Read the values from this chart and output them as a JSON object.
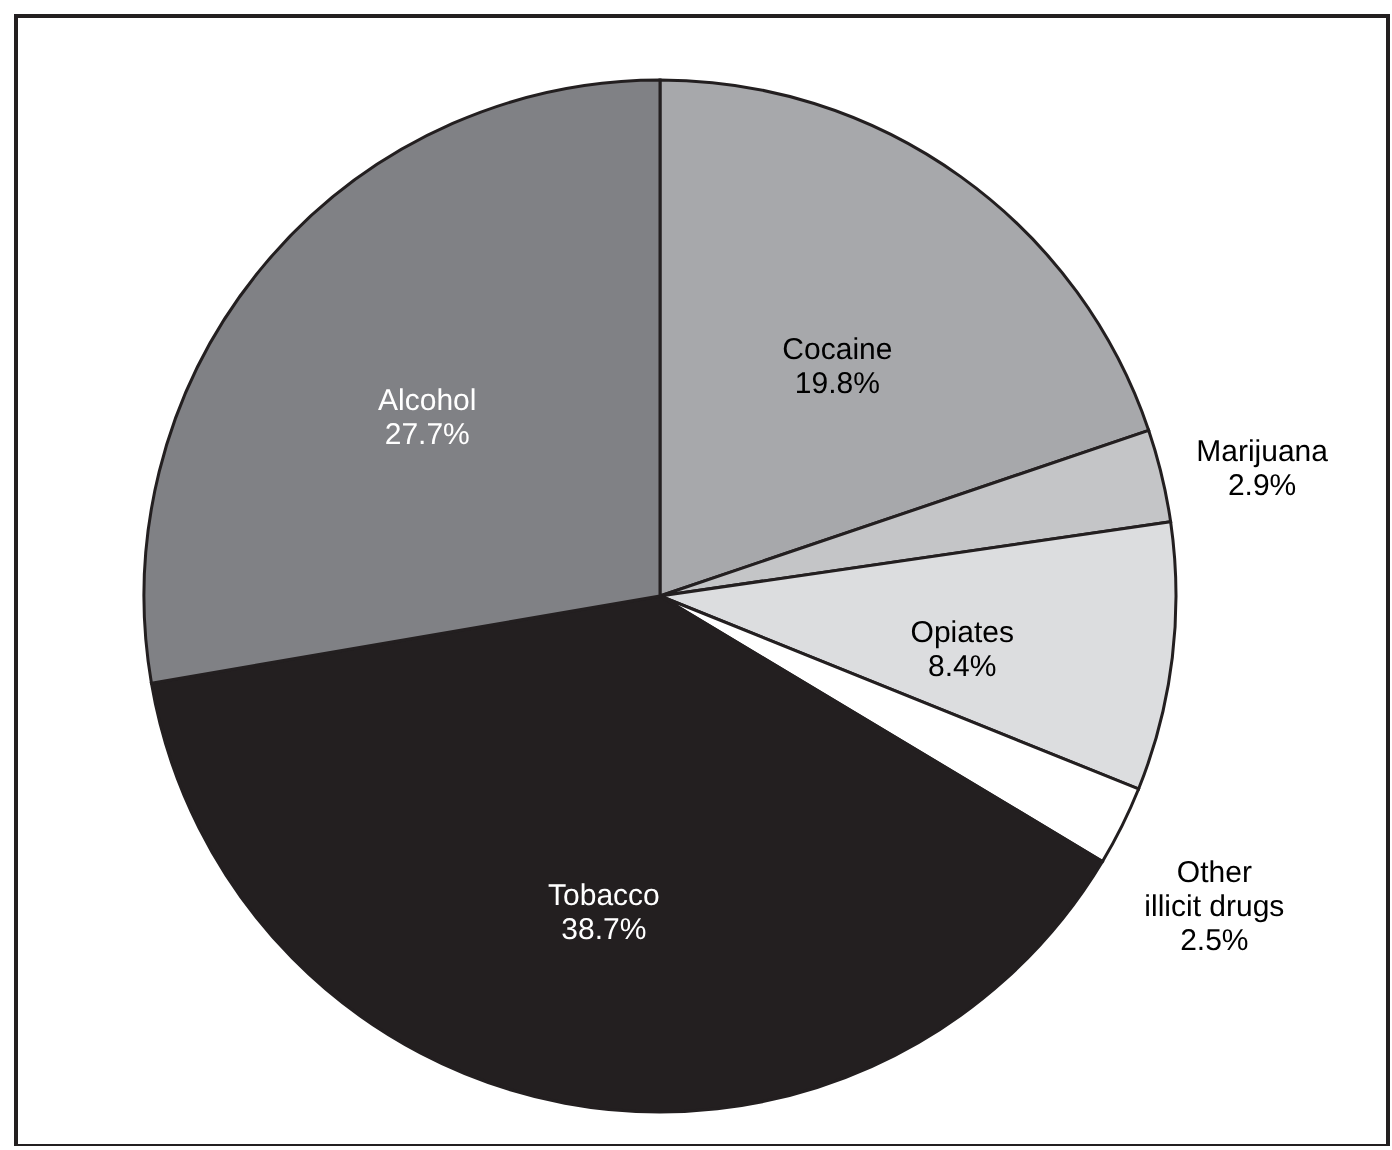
{
  "chart_data": {
    "type": "pie",
    "categories": [
      "Cocaine",
      "Marijuana",
      "Opiates",
      "Other illicit drugs",
      "Tobacco",
      "Alcohol"
    ],
    "values": [
      19.8,
      2.9,
      8.4,
      2.5,
      38.7,
      27.7
    ],
    "colors": [
      "#a7a8ab",
      "#c4c5c7",
      "#dcdddf",
      "#ffffff",
      "#231f20",
      "#808185"
    ],
    "value_labels": [
      "19.8%",
      "2.9%",
      "8.4%",
      "2.5%",
      "38.7%",
      "27.7%"
    ]
  }
}
